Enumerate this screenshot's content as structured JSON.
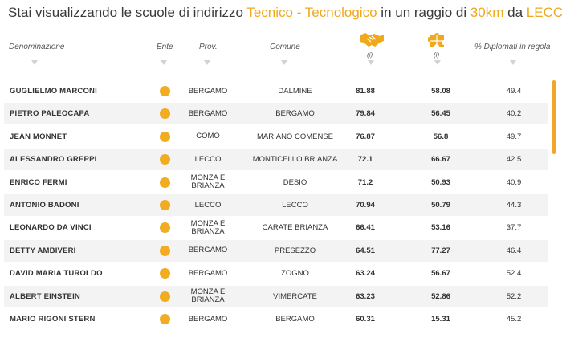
{
  "title": {
    "prefix": "Stai visualizzando le scuole di indirizzo ",
    "indirizzo": "Tecnico - Tecnologico",
    "middle": " in un raggio di ",
    "raggio": "30km",
    "da": " da ",
    "citta": "LECCO"
  },
  "columns": {
    "denominazione": "Denominazione",
    "ente": "Ente",
    "prov": "Prov.",
    "comune": "Comune",
    "info1": "(i)",
    "info2": "(i)",
    "diplomati": "% Diplomati in regola"
  },
  "colors": {
    "accent": "#f0a81d",
    "dot": "#f1ac22"
  },
  "icons": {
    "col1": "handshake-icon",
    "col2": "puzzle-icon"
  },
  "schools": [
    {
      "name": "GUGLIELMO MARCONI",
      "prov": "BERGAMO",
      "comune": "DALMINE",
      "v1": "81.88",
      "v2": "58.08",
      "v3": "49.4"
    },
    {
      "name": "PIETRO PALEOCAPA",
      "prov": "BERGAMO",
      "comune": "BERGAMO",
      "v1": "79.84",
      "v2": "56.45",
      "v3": "40.2"
    },
    {
      "name": "JEAN MONNET",
      "prov": "COMO",
      "comune": "MARIANO COMENSE",
      "v1": "76.87",
      "v2": "56.8",
      "v3": "49.7"
    },
    {
      "name": "ALESSANDRO GREPPI",
      "prov": "LECCO",
      "comune": "MONTICELLO BRIANZA",
      "v1": "72.1",
      "v2": "66.67",
      "v3": "42.5"
    },
    {
      "name": "ENRICO FERMI",
      "prov": "MONZA E BRIANZA",
      "comune": "DESIO",
      "v1": "71.2",
      "v2": "50.93",
      "v3": "40.9"
    },
    {
      "name": "ANTONIO BADONI",
      "prov": "LECCO",
      "comune": "LECCO",
      "v1": "70.94",
      "v2": "50.79",
      "v3": "44.3"
    },
    {
      "name": "LEONARDO DA VINCI",
      "prov": "MONZA E BRIANZA",
      "comune": "CARATE BRIANZA",
      "v1": "66.41",
      "v2": "53.16",
      "v3": "37.7"
    },
    {
      "name": "BETTY AMBIVERI",
      "prov": "BERGAMO",
      "comune": "PRESEZZO",
      "v1": "64.51",
      "v2": "77.27",
      "v3": "46.4"
    },
    {
      "name": "DAVID MARIA TUROLDO",
      "prov": "BERGAMO",
      "comune": "ZOGNO",
      "v1": "63.24",
      "v2": "56.67",
      "v3": "52.4"
    },
    {
      "name": "ALBERT EINSTEIN",
      "prov": "MONZA E BRIANZA",
      "comune": "VIMERCATE",
      "v1": "63.23",
      "v2": "52.86",
      "v3": "52.2"
    },
    {
      "name": "MARIO RIGONI STERN",
      "prov": "BERGAMO",
      "comune": "BERGAMO",
      "v1": "60.31",
      "v2": "15.31",
      "v3": "45.2"
    }
  ]
}
